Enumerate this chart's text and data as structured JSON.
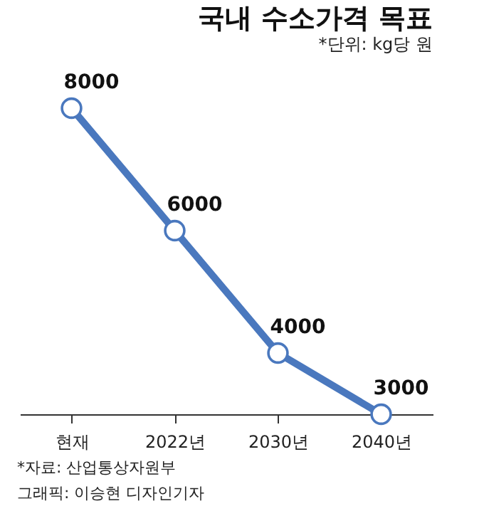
{
  "chart_data": {
    "type": "line",
    "title": "국내 수소가격 목표",
    "subtitle": "*단위: kg당 원",
    "categories": [
      "현재",
      "2022년",
      "2030년",
      "2040년"
    ],
    "series": [
      {
        "color": "#4a78be",
        "values": [
          8000,
          6000,
          4000,
          3000
        ]
      }
    ],
    "data_labels": true,
    "marker": "circle",
    "grid": false,
    "legend": false,
    "line_style": "solid",
    "annotations": [
      "*자료: 산업통상자원부",
      "그래픽: 이승현 디자인기자"
    ]
  }
}
